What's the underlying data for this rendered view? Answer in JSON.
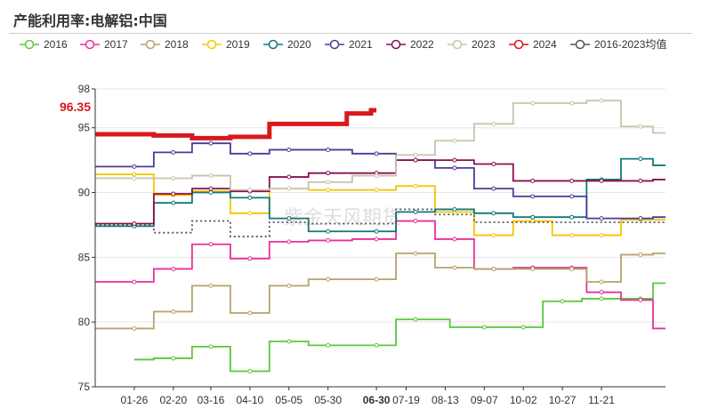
{
  "chart_data": {
    "type": "line",
    "title": "产能利用率:电解铝:中国",
    "watermark": "紫金天风期货",
    "xlabel": "",
    "ylabel": "",
    "ylim": [
      75,
      98
    ],
    "yticks": [
      75,
      80,
      85,
      90,
      95,
      98
    ],
    "xlim": [
      1,
      366
    ],
    "xtick_labels": [
      "01-26",
      "02-20",
      "03-16",
      "04-10",
      "05-05",
      "05-30",
      "06-30",
      "07-19",
      "08-13",
      "09-07",
      "10-02",
      "10-27",
      "11-21"
    ],
    "xtick_days": [
      26,
      51,
      75,
      100,
      125,
      150,
      181,
      200,
      225,
      250,
      275,
      300,
      325
    ],
    "highlight_tick": "06-30",
    "highlight_color": "#d7191c",
    "last_value_label": "96.35",
    "series": [
      {
        "name": "2016",
        "color": "#5ac83a",
        "dashed": false,
        "days": [
          26,
          51,
          75,
          100,
          125,
          150,
          181,
          206,
          250,
          275,
          300,
          325,
          350,
          366
        ],
        "values": [
          77.1,
          77.2,
          78.1,
          76.2,
          78.5,
          78.2,
          78.2,
          80.2,
          79.6,
          79.6,
          81.6,
          81.8,
          81.8,
          83.0
        ]
      },
      {
        "name": "2017",
        "color": "#e8309d",
        "dashed": false,
        "days": [
          1,
          26,
          51,
          75,
          100,
          125,
          150,
          181,
          206,
          231,
          256,
          281,
          306,
          325,
          350,
          366
        ],
        "values": [
          83.1,
          83.1,
          84.1,
          86.0,
          84.9,
          86.2,
          86.3,
          86.4,
          87.8,
          86.4,
          84.1,
          84.2,
          84.2,
          82.3,
          81.7,
          79.5
        ]
      },
      {
        "name": "2018",
        "color": "#b5a36c",
        "dashed": false,
        "days": [
          1,
          26,
          51,
          75,
          100,
          125,
          150,
          181,
          206,
          231,
          256,
          281,
          306,
          325,
          350,
          366
        ],
        "values": [
          79.5,
          79.5,
          80.8,
          82.8,
          80.7,
          82.8,
          83.3,
          83.3,
          85.3,
          84.2,
          84.1,
          84.1,
          84.1,
          83.1,
          85.2,
          85.3
        ]
      },
      {
        "name": "2019",
        "color": "#f5c400",
        "dashed": false,
        "days": [
          1,
          26,
          51,
          75,
          100,
          125,
          150,
          181,
          206,
          231,
          256,
          281,
          306,
          325,
          350,
          366
        ],
        "values": [
          91.4,
          91.4,
          89.8,
          90.1,
          88.4,
          90.3,
          90.2,
          90.2,
          90.5,
          88.5,
          86.7,
          87.8,
          86.7,
          86.7,
          87.9,
          87.9
        ]
      },
      {
        "name": "2020",
        "color": "#117878",
        "dashed": false,
        "days": [
          1,
          26,
          51,
          75,
          100,
          125,
          150,
          181,
          206,
          231,
          256,
          281,
          306,
          325,
          350,
          366
        ],
        "values": [
          87.4,
          87.4,
          89.2,
          90.0,
          89.6,
          88.0,
          87.0,
          87.0,
          88.5,
          88.7,
          88.4,
          88.1,
          88.1,
          91.0,
          92.6,
          92.1
        ]
      },
      {
        "name": "2021",
        "color": "#4a3b9a",
        "dashed": false,
        "days": [
          1,
          26,
          51,
          75,
          100,
          125,
          150,
          181,
          206,
          231,
          256,
          281,
          306,
          325,
          350,
          366
        ],
        "values": [
          92.0,
          92.0,
          93.1,
          93.8,
          93.0,
          93.3,
          93.3,
          93.0,
          92.5,
          91.9,
          90.3,
          89.7,
          89.7,
          88.0,
          88.0,
          88.1
        ]
      },
      {
        "name": "2022",
        "color": "#8a0f4e",
        "dashed": false,
        "days": [
          1,
          26,
          51,
          75,
          100,
          125,
          150,
          181,
          206,
          231,
          256,
          281,
          306,
          325,
          350,
          366
        ],
        "values": [
          87.6,
          87.6,
          89.9,
          90.3,
          90.1,
          91.2,
          91.5,
          91.5,
          92.5,
          92.5,
          92.2,
          90.9,
          90.9,
          90.9,
          90.9,
          91.0
        ]
      },
      {
        "name": "2023",
        "color": "#c9c2ad",
        "dashed": false,
        "days": [
          1,
          26,
          51,
          75,
          100,
          125,
          150,
          181,
          206,
          231,
          256,
          281,
          306,
          325,
          350,
          366
        ],
        "values": [
          91.1,
          91.1,
          91.1,
          91.3,
          90.2,
          90.3,
          90.8,
          91.3,
          92.9,
          94.0,
          95.3,
          96.9,
          96.9,
          97.1,
          95.1,
          94.6
        ]
      },
      {
        "name": "2024",
        "color": "#d7191c",
        "dashed": false,
        "bold": true,
        "days": [
          1,
          26,
          51,
          75,
          100,
          125,
          150,
          174,
          181
        ],
        "values": [
          94.5,
          94.5,
          94.4,
          94.2,
          94.3,
          95.3,
          95.3,
          96.1,
          96.35
        ]
      },
      {
        "name": "2016-2023均值",
        "color": "#555555",
        "dashed": true,
        "days": [
          1,
          26,
          51,
          75,
          100,
          125,
          150,
          181,
          206,
          231,
          256,
          281,
          306,
          325,
          350,
          366
        ],
        "values": [
          87.5,
          87.5,
          86.9,
          87.8,
          86.6,
          87.7,
          87.6,
          87.6,
          88.7,
          88.3,
          87.7,
          87.7,
          87.7,
          87.7,
          87.7,
          87.7
        ]
      }
    ]
  }
}
